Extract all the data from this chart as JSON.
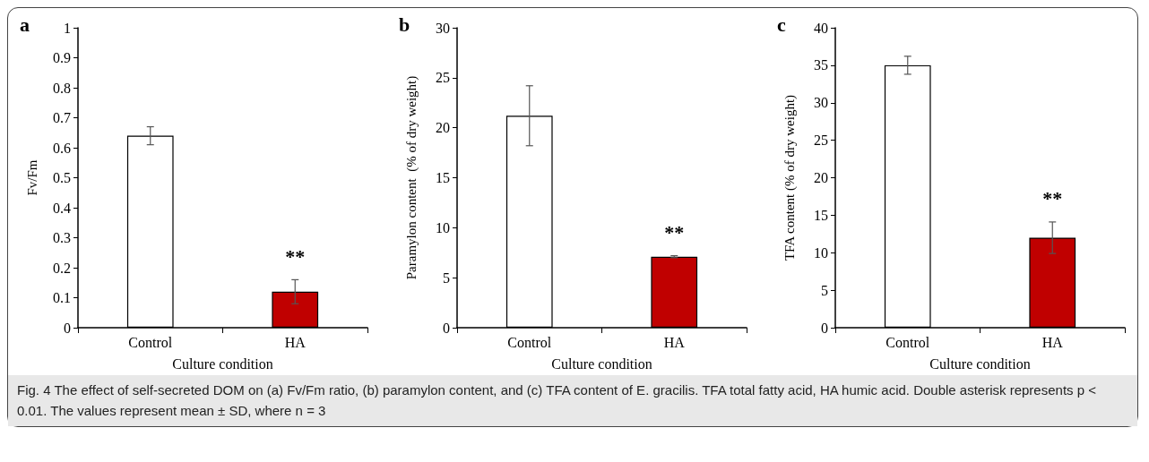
{
  "chart_data": [
    {
      "type": "bar",
      "title": "a",
      "xlabel": "Culture condition",
      "ylabel": "Fv/Fm",
      "categories": [
        "Control",
        "HA"
      ],
      "values": [
        0.64,
        0.12
      ],
      "errors": [
        0.03,
        0.04
      ],
      "colors": [
        "#ffffff",
        "#c00000"
      ],
      "ylim": [
        0,
        1
      ],
      "yticks": [
        0,
        0.1,
        0.2,
        0.3,
        0.4,
        0.5,
        0.6,
        0.7,
        0.8,
        0.9,
        1
      ],
      "grid": false,
      "annotations": [
        "**",
        "Fig. 4  The effect of self-secreted DOM on (a) Fv/Fm ratio, (b) paramylon content, and (c) TFA content of E. gracilis. TFA total fatty acid, HA humic acid. Double asterisk represents p < 0.01. The values represent mean ± SD, where n = 3"
      ]
    },
    {
      "type": "bar",
      "title": "b",
      "xlabel": "Culture condition",
      "ylabel": "Paramylon content  (% of dry weight)",
      "categories": [
        "Control",
        "HA"
      ],
      "values": [
        21.2,
        7.1
      ],
      "errors": [
        3,
        0.1
      ],
      "colors": [
        "#ffffff",
        "#c00000"
      ],
      "ylim": [
        0,
        30
      ],
      "yticks": [
        0,
        5,
        10,
        15,
        20,
        25,
        30
      ],
      "grid": false,
      "annotations": [
        "**"
      ]
    },
    {
      "type": "bar",
      "title": "c",
      "xlabel": "Culture condition",
      "ylabel": "TFA content (% of dry weight)",
      "categories": [
        "Control",
        "HA"
      ],
      "values": [
        35,
        12
      ],
      "errors": [
        1.2,
        2.1
      ],
      "colors": [
        "#ffffff",
        "#c00000"
      ],
      "ylim": [
        0,
        40
      ],
      "yticks": [
        0,
        5,
        10,
        15,
        20,
        25,
        30,
        35,
        40
      ],
      "grid": false,
      "annotations": [
        "**"
      ]
    }
  ]
}
